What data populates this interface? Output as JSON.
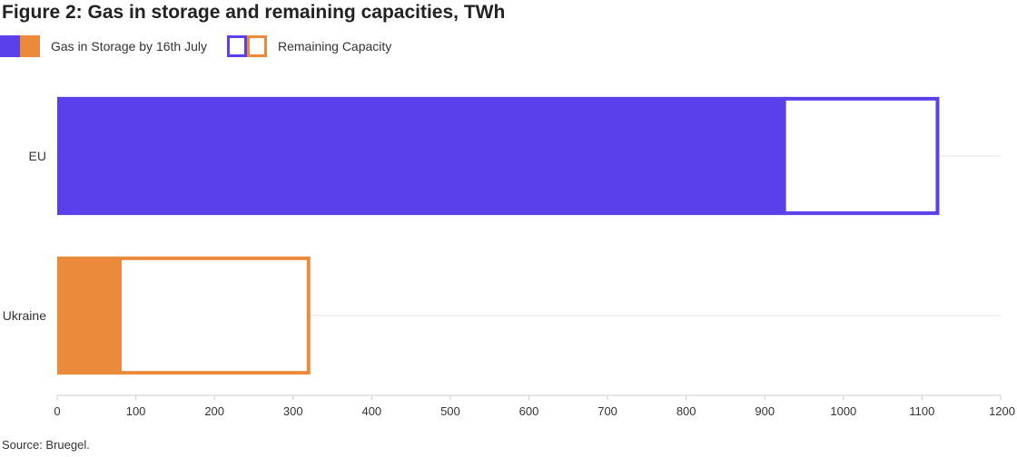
{
  "chart_data": {
    "type": "bar",
    "orientation": "horizontal",
    "stacked": true,
    "title": "Figure 2: Gas in storage and remaining capacities, TWh",
    "categories": [
      "EU",
      "Ukraine"
    ],
    "series": [
      {
        "name": "Gas in Storage by 16th July",
        "values": [
          927,
          82
        ],
        "fill": "solid"
      },
      {
        "name": "Remaining Capacity",
        "values": [
          195,
          240
        ],
        "fill": "outline"
      }
    ],
    "category_colors": {
      "EU": "#5940ea",
      "Ukraine": "#ec8a3c"
    },
    "xlim": [
      0,
      1200
    ],
    "xticks": [
      "0",
      "100",
      "200",
      "300",
      "400",
      "500",
      "600",
      "700",
      "800",
      "900",
      "1000",
      "1100",
      "1200"
    ],
    "grid": "horizontal",
    "legend_position": "top-left",
    "source": "Source: Bruegel."
  }
}
